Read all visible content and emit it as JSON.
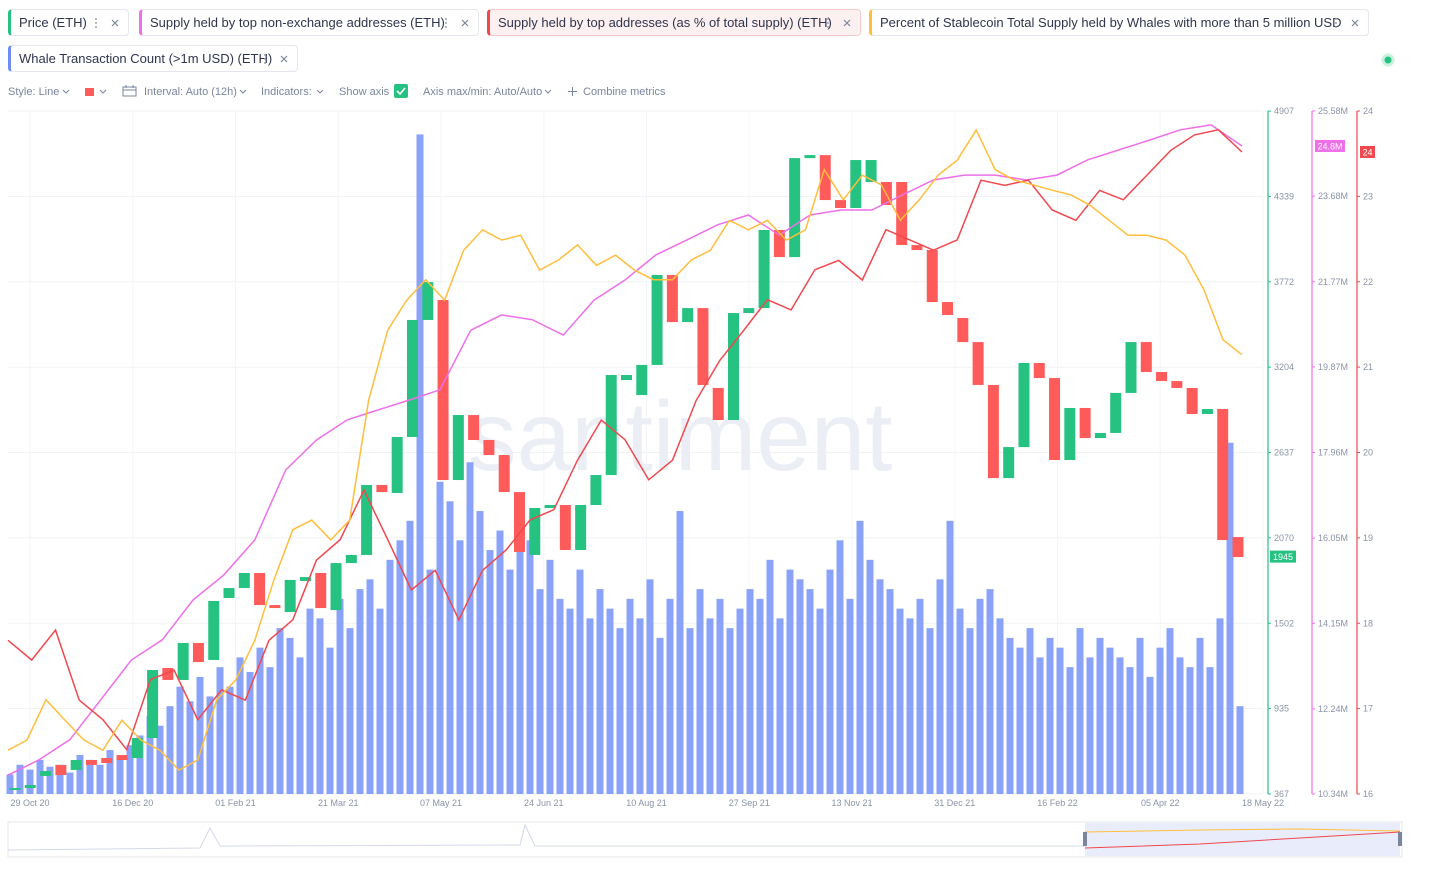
{
  "toolbar": {
    "style": "Style: Line",
    "interval": "Interval: Auto (12h)",
    "indicators": "Indicators:",
    "show_axis": "Show axis",
    "axis_range": "Axis max/min: Auto/Auto",
    "combine": "Combine metrics"
  },
  "watermark": "santiment",
  "chart_data": {
    "type": "candlestick",
    "name": "Price (ETH)",
    "color": "#26c281",
    "down_color": "#ff5b5b",
    "grid": true,
    "x_labels": [
      "29 Oct 20",
      "16 Dec 20",
      "01 Feb 21",
      "21 Mar 21",
      "07 May 21",
      "24 Jun 21",
      "10 Aug 21",
      "27 Sep 21",
      "13 Nov 21",
      "31 Dec 21",
      "16 Feb 22",
      "05 Apr 22",
      "18 May 22"
    ],
    "ylim": [
      367,
      4907
    ],
    "yticks": [
      367,
      935,
      1502,
      2070,
      2637,
      3204,
      3772,
      4339,
      4907
    ],
    "open": [
      394,
      407,
      487,
      560,
      527,
      593,
      606,
      626,
      606,
      739,
      1205,
      1125,
      1371,
      1258,
      1670,
      1736,
      1836,
      1623,
      1577,
      1783,
      1836,
      1590,
      1902,
      1956,
      2421,
      2368,
      2740,
      3518,
      3651,
      2454,
      2886,
      2720,
      2620,
      2374,
      1956,
      2268,
      2288,
      1989,
      2288,
      2487,
      3119,
      3019,
      3219,
      3817,
      3504,
      3597,
      3066,
      2853,
      3564,
      3597,
      4116,
      3936,
      4594,
      4614,
      4315,
      4262,
      4435,
      4435,
      4435,
      4016,
      3983,
      3637,
      3531,
      3371,
      3086,
      2467,
      2673,
      3232,
      3132,
      2587,
      2933,
      2733,
      2767,
      3033,
      3371,
      3172,
      3112,
      3066,
      2893,
      2926,
      2075
    ],
    "close": [
      407,
      427,
      520,
      493,
      593,
      560,
      573,
      593,
      739,
      1191,
      1125,
      1371,
      1244,
      1650,
      1736,
      1836,
      1623,
      1603,
      1790,
      1809,
      1603,
      1902,
      1956,
      2421,
      2374,
      2740,
      3518,
      3770,
      2454,
      2886,
      2720,
      2620,
      2374,
      1976,
      2268,
      2288,
      1989,
      2288,
      2487,
      3152,
      3152,
      3219,
      3817,
      3504,
      3597,
      3086,
      2853,
      3564,
      3597,
      4116,
      3936,
      4594,
      4614,
      4315,
      4262,
      4581,
      4581,
      4282,
      4016,
      3983,
      3637,
      3551,
      3371,
      3086,
      2467,
      2673,
      3232,
      3132,
      2587,
      2933,
      2733,
      2767,
      3033,
      3371,
      3172,
      3112,
      3066,
      2893,
      2926,
      2055,
      1942
    ],
    "last_badge": 1945,
    "overlays": [
      {
        "type": "line",
        "name": "Supply held by top non-exchange addresses (ETH)",
        "color": "#ee6fe9",
        "ylim": [
          10340000,
          25580000
        ],
        "yticks": [
          {
            "value": 10340000,
            "label": "10.34M"
          },
          {
            "value": 12240000,
            "label": "12.24M"
          },
          {
            "value": 14150000,
            "label": "14.15M"
          },
          {
            "value": 16050000,
            "label": "16.05M"
          },
          {
            "value": 17960000,
            "label": "17.96M"
          },
          {
            "value": 19870000,
            "label": "19.87M"
          },
          {
            "value": 21770000,
            "label": "21.77M"
          },
          {
            "value": 23680000,
            "label": "23.68M"
          },
          {
            "value": 25580000,
            "label": "25.58M"
          }
        ],
        "values": [
          10760000,
          11100000,
          11550000,
          12440000,
          13330000,
          13780000,
          14670000,
          15230000,
          16010000,
          17570000,
          18240000,
          18690000,
          18910000,
          19130000,
          19360000,
          20690000,
          21030000,
          20920000,
          20580000,
          21360000,
          21810000,
          22370000,
          22700000,
          23040000,
          23260000,
          22810000,
          23260000,
          23370000,
          23370000,
          23710000,
          24040000,
          24150000,
          24150000,
          24040000,
          24150000,
          24490000,
          24710000,
          24930000,
          25160000,
          25270000,
          24800000
        ],
        "badge": {
          "value": 24800000,
          "label": "24.8M"
        }
      },
      {
        "type": "line",
        "name": "Supply held by top addresses (as % of total supply) (ETH)",
        "color": "#f0484e",
        "active": true,
        "ylim": [
          16,
          24
        ],
        "yticks": [
          16,
          17,
          18,
          19,
          20,
          21,
          22,
          23,
          24
        ],
        "values": [
          17.8,
          17.57,
          17.92,
          17.1,
          16.87,
          16.52,
          17.34,
          17.45,
          16.87,
          17.22,
          17.1,
          17.8,
          18.04,
          18.74,
          18.98,
          19.56,
          18.98,
          18.39,
          18.62,
          18.04,
          18.62,
          18.86,
          19.21,
          19.33,
          19.91,
          20.38,
          20.15,
          19.68,
          19.91,
          20.61,
          21.08,
          21.43,
          21.79,
          21.67,
          22.14,
          22.25,
          22.02,
          22.61,
          22.49,
          22.37,
          22.49,
          23.19,
          23.13,
          23.19,
          22.84,
          22.72,
          23.07,
          22.96,
          23.25,
          23.54,
          23.72,
          23.78,
          23.52
        ],
        "badge": {
          "value": 23.52,
          "label": "24"
        }
      },
      {
        "type": "line",
        "name": "Percent of Stablecoin Total Supply held by Whales with more than 5 million USD",
        "color": "#ffbe3c",
        "ylim": [
          0,
          100
        ],
        "values": [
          6.4,
          7.9,
          13.8,
          10.8,
          7.9,
          6.4,
          10.8,
          7.9,
          6.4,
          3.5,
          5.0,
          13.8,
          16.7,
          22.5,
          31.3,
          38.7,
          40.1,
          37.2,
          40.1,
          57.7,
          67.9,
          72.3,
          75.3,
          72.3,
          79.6,
          82.6,
          81.1,
          81.8,
          76.7,
          78.2,
          80.4,
          77.4,
          78.9,
          76.7,
          75.3,
          75.3,
          78.2,
          79.6,
          84.0,
          82.6,
          84.0,
          81.1,
          82.6,
          91.4,
          87.0,
          90.6,
          89.2,
          84.0,
          87.0,
          90.6,
          92.8,
          97.2,
          91.4,
          89.9,
          89.2,
          88.4,
          87.7,
          86.2,
          84.0,
          81.8,
          81.8,
          81.1,
          78.9,
          73.8,
          66.5,
          64.3
        ]
      },
      {
        "type": "bar",
        "name": "Whale Transaction Count (>1m USD) (ETH)",
        "color": "#6d8cf7",
        "ylim": [
          0,
          700
        ],
        "values": [
          20,
          30,
          25,
          35,
          28,
          30,
          22,
          40,
          35,
          30,
          45,
          38,
          50,
          60,
          80,
          70,
          90,
          110,
          95,
          120,
          100,
          130,
          110,
          140,
          125,
          150,
          130,
          170,
          160,
          140,
          190,
          180,
          150,
          200,
          170,
          210,
          220,
          190,
          240,
          260,
          280,
          676,
          230,
          320,
          300,
          260,
          340,
          290,
          250,
          270,
          230,
          300,
          260,
          210,
          240,
          200,
          190,
          230,
          180,
          210,
          190,
          170,
          200,
          180,
          220,
          160,
          200,
          290,
          170,
          210,
          180,
          200,
          170,
          190,
          210,
          200,
          240,
          180,
          230,
          220,
          210,
          190,
          230,
          260,
          200,
          280,
          240,
          220,
          210,
          190,
          180,
          200,
          170,
          220,
          280,
          190,
          170,
          200,
          210,
          180,
          160,
          150,
          170,
          140,
          160,
          150,
          130,
          170,
          140,
          160,
          150,
          140,
          130,
          160,
          120,
          150,
          170,
          140,
          130,
          160,
          130,
          180,
          360,
          90
        ]
      }
    ]
  }
}
